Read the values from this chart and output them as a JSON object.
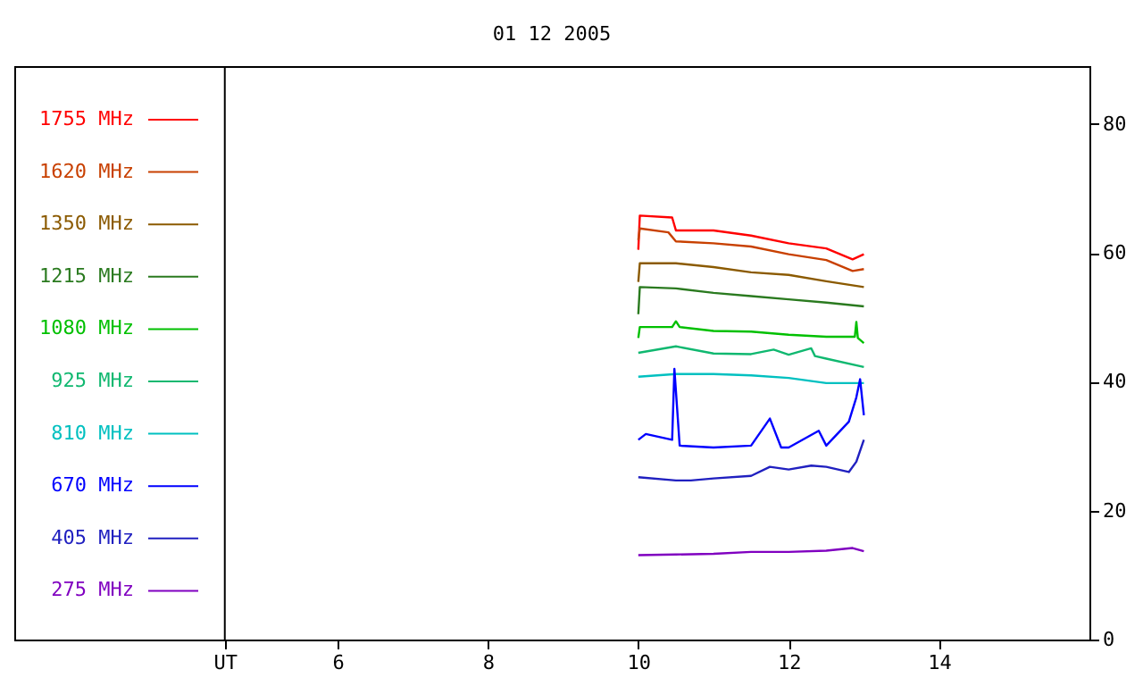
{
  "chart_data": {
    "type": "line",
    "title": "01 12 2005",
    "xlim": [
      1.7,
      16.0
    ],
    "ylim": [
      0,
      89
    ],
    "xticks": [
      {
        "value": 4.5,
        "label": "UT"
      },
      6,
      8,
      10,
      12,
      14
    ],
    "yticks": [
      0,
      20,
      40,
      60,
      80
    ],
    "ref_lines": [
      {
        "axis": "x",
        "value": 4.5,
        "color": "#000000"
      }
    ],
    "legend": "left",
    "series": [
      {
        "name": "1755 MHz",
        "color": "#ff0000",
        "x": [
          10.0,
          10.02,
          10.45,
          10.5,
          11.0,
          11.5,
          12.0,
          12.5,
          12.85,
          13.0
        ],
        "values": [
          60.5,
          65.8,
          65.5,
          63.5,
          63.5,
          62.7,
          61.5,
          60.7,
          59.0,
          59.8
        ]
      },
      {
        "name": "1620 MHz",
        "color": "#c84000",
        "x": [
          10.0,
          10.02,
          10.4,
          10.5,
          11.0,
          11.5,
          12.0,
          12.5,
          12.85,
          13.0
        ],
        "values": [
          62.0,
          63.8,
          63.2,
          61.8,
          61.5,
          61.0,
          59.8,
          58.9,
          57.2,
          57.5
        ]
      },
      {
        "name": "1350 MHz",
        "color": "#8b5a00",
        "x": [
          10.0,
          10.02,
          10.5,
          11.0,
          11.5,
          12.0,
          12.5,
          13.0
        ],
        "values": [
          55.5,
          58.4,
          58.4,
          57.8,
          57.0,
          56.6,
          55.6,
          54.7
        ]
      },
      {
        "name": "1215 MHz",
        "color": "#2a7a1f",
        "x": [
          10.0,
          10.02,
          10.5,
          11.0,
          11.5,
          12.0,
          12.5,
          13.0
        ],
        "values": [
          50.5,
          54.7,
          54.5,
          53.8,
          53.3,
          52.8,
          52.3,
          51.7
        ]
      },
      {
        "name": "1080 MHz",
        "color": "#00c000",
        "x": [
          10.0,
          10.02,
          10.45,
          10.5,
          10.55,
          11.0,
          11.5,
          12.0,
          12.5,
          12.88,
          12.9,
          12.92,
          13.0
        ],
        "values": [
          46.8,
          48.5,
          48.5,
          49.4,
          48.5,
          47.9,
          47.8,
          47.3,
          47.0,
          47.0,
          49.3,
          46.8,
          46.0
        ]
      },
      {
        "name": "925 MHz",
        "color": "#10b870",
        "x": [
          10.0,
          10.5,
          11.0,
          11.5,
          11.8,
          12.0,
          12.3,
          12.35,
          12.5,
          13.0
        ],
        "values": [
          44.5,
          45.5,
          44.4,
          44.3,
          45.0,
          44.2,
          45.2,
          44.0,
          43.6,
          42.3
        ]
      },
      {
        "name": "810 MHz",
        "color": "#00c0c0",
        "x": [
          10.0,
          10.5,
          11.0,
          11.5,
          12.0,
          12.5,
          13.0
        ],
        "values": [
          40.8,
          41.2,
          41.2,
          41.0,
          40.6,
          39.8,
          39.8
        ]
      },
      {
        "name": "670 MHz",
        "color": "#0000ff",
        "x": [
          10.0,
          10.1,
          10.45,
          10.48,
          10.55,
          11.0,
          11.5,
          11.75,
          11.9,
          12.0,
          12.4,
          12.5,
          12.8,
          12.9,
          12.95,
          13.0
        ],
        "values": [
          31.0,
          31.9,
          31.0,
          42.0,
          30.1,
          29.8,
          30.1,
          34.3,
          29.8,
          29.8,
          32.4,
          30.1,
          33.8,
          37.6,
          40.4,
          34.8
        ]
      },
      {
        "name": "405 MHz",
        "color": "#2020c0",
        "x": [
          10.0,
          10.5,
          10.7,
          11.0,
          11.5,
          11.75,
          12.0,
          12.3,
          12.5,
          12.8,
          12.9,
          13.0
        ],
        "values": [
          25.2,
          24.7,
          24.7,
          25.0,
          25.4,
          26.8,
          26.4,
          27.0,
          26.8,
          26.0,
          27.6,
          31.0
        ]
      },
      {
        "name": "275 MHz",
        "color": "#8000c0",
        "x": [
          10.0,
          10.5,
          11.0,
          11.5,
          12.0,
          12.5,
          12.85,
          13.0
        ],
        "values": [
          13.1,
          13.2,
          13.3,
          13.6,
          13.6,
          13.8,
          14.2,
          13.7
        ]
      }
    ]
  }
}
